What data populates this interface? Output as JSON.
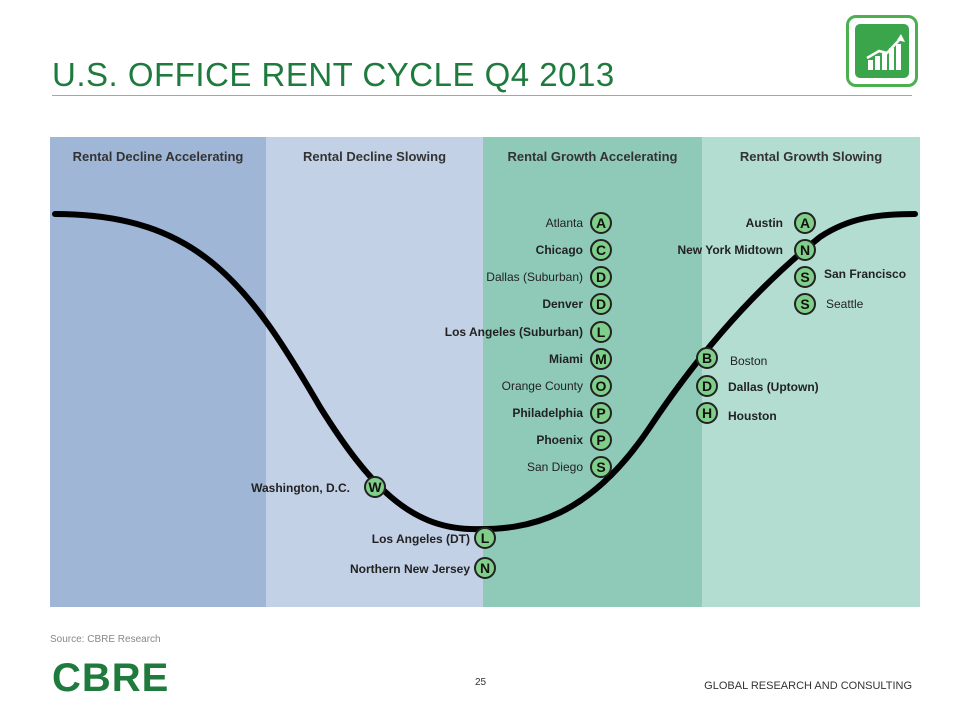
{
  "header": {
    "title": "U.S. OFFICE RENT CYCLE Q4 2013"
  },
  "bands": [
    {
      "label": "Rental Decline Accelerating",
      "color": "#9fb6d6"
    },
    {
      "label": "Rental Decline Slowing",
      "color": "#c2d1e6"
    },
    {
      "label": "Rental Growth Accelerating",
      "color": "#8ecab7"
    },
    {
      "label": "Rental Growth Slowing",
      "color": "#b3ddd1"
    }
  ],
  "markets": {
    "atlanta": {
      "letter": "A",
      "name": "Atlanta"
    },
    "chicago": {
      "letter": "C",
      "name": "Chicago"
    },
    "dallas_suburban": {
      "letter": "D",
      "name": "Dallas (Suburban)"
    },
    "denver": {
      "letter": "D",
      "name": "Denver"
    },
    "la_suburban": {
      "letter": "L",
      "name": "Los Angeles (Suburban)"
    },
    "miami": {
      "letter": "M",
      "name": "Miami"
    },
    "orange_county": {
      "letter": "O",
      "name": "Orange County"
    },
    "philadelphia": {
      "letter": "P",
      "name": "Philadelphia"
    },
    "phoenix": {
      "letter": "P",
      "name": "Phoenix"
    },
    "san_diego": {
      "letter": "S",
      "name": "San Diego"
    },
    "austin": {
      "letter": "A",
      "name": "Austin"
    },
    "ny_midtown": {
      "letter": "N",
      "name": "New York Midtown"
    },
    "san_francisco": {
      "letter": "S",
      "name": "San Francisco"
    },
    "seattle": {
      "letter": "S",
      "name": "Seattle"
    },
    "boston": {
      "letter": "B",
      "name": "Boston"
    },
    "dallas_uptown": {
      "letter": "D",
      "name": "Dallas (Uptown)"
    },
    "houston": {
      "letter": "H",
      "name": "Houston"
    },
    "washington": {
      "letter": "W",
      "name": "Washington, D.C."
    },
    "la_dt": {
      "letter": "L",
      "name": "Los Angeles (DT)"
    },
    "northern_nj": {
      "letter": "N",
      "name": "Northern New Jersey"
    }
  },
  "footer": {
    "source": "Source:   CBRE Research",
    "brand": "CBRE",
    "page": "25",
    "division": "GLOBAL RESEARCH AND CONSULTING"
  },
  "colors": {
    "title": "#1f7a3e",
    "circle_fill": "#7fcf8a",
    "curve": "#000000"
  }
}
